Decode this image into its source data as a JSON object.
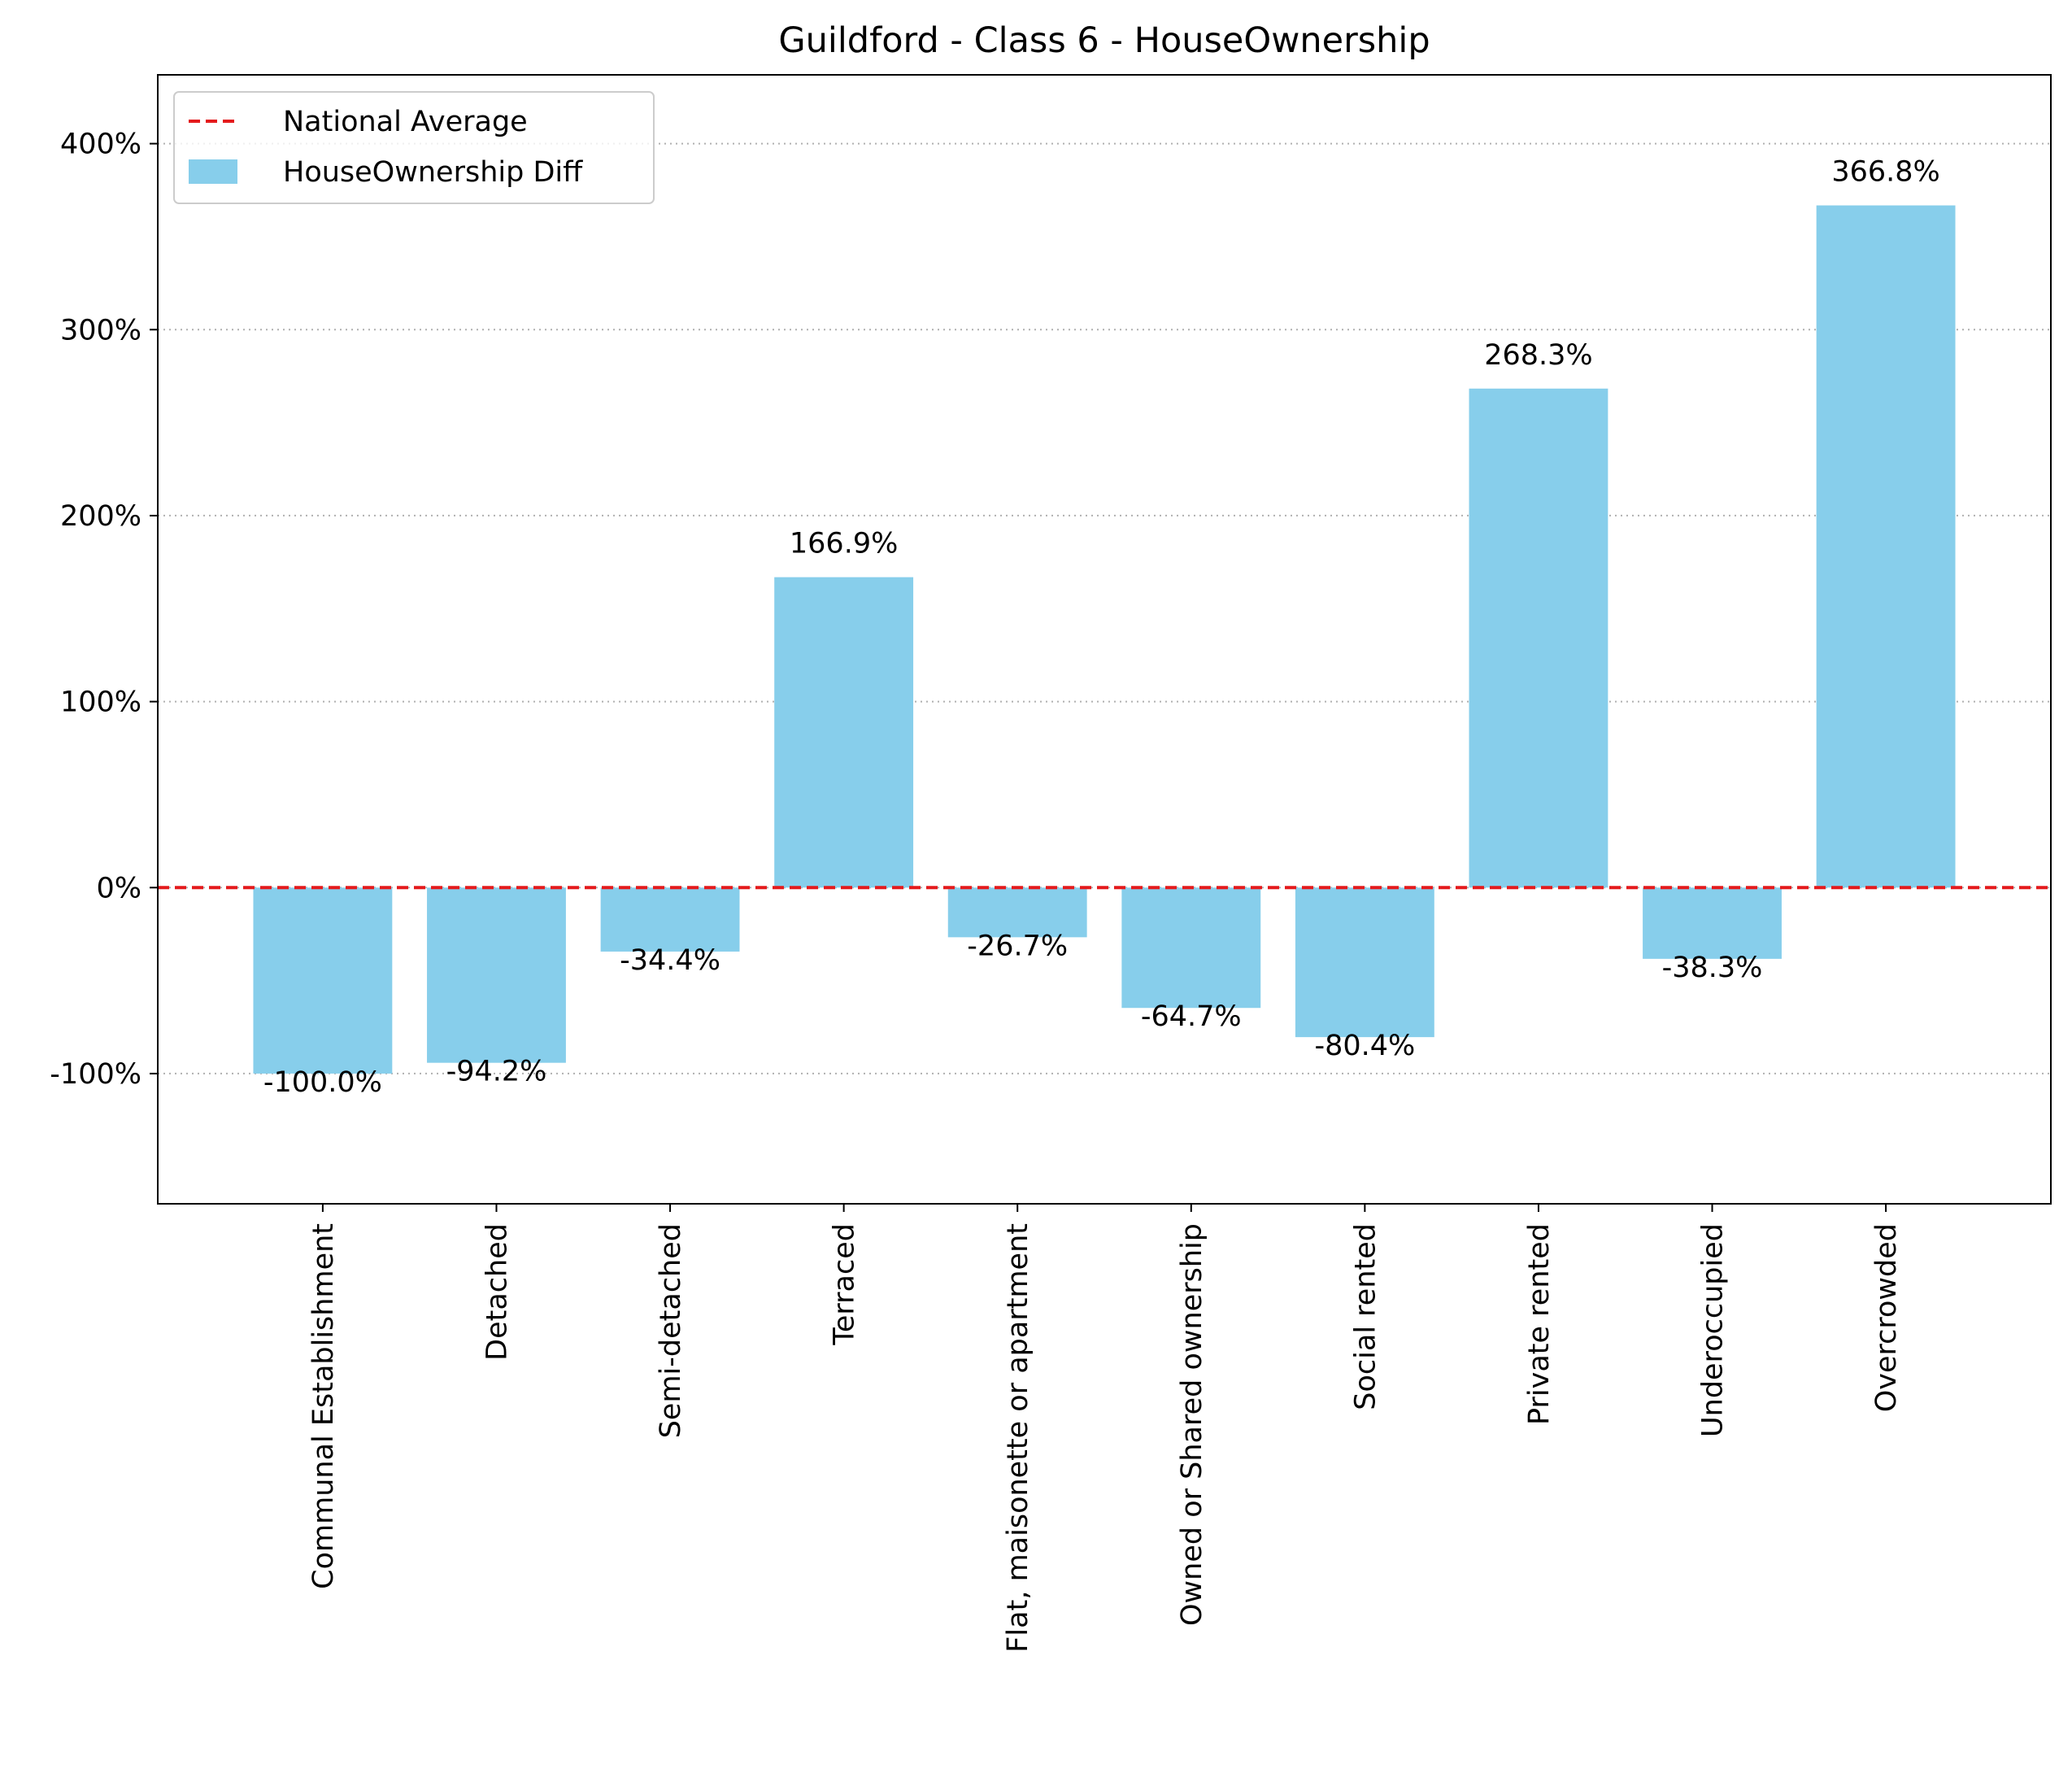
{
  "chart_data": {
    "type": "bar",
    "title": "Guildford - Class 6 - HouseOwnership",
    "xlabel": "",
    "ylabel": "",
    "categories": [
      "Communal Establishment",
      "Detached",
      "Semi-detached",
      "Terraced",
      "Flat, maisonette or apartment",
      "Owned or Shared ownership",
      "Social rented",
      "Private rented",
      "Underoccupied",
      "Overcrowded"
    ],
    "series": [
      {
        "name": "HouseOwnership Diff",
        "values": [
          -100.0,
          -94.2,
          -34.4,
          166.9,
          -26.7,
          -64.7,
          -80.4,
          268.3,
          -38.3,
          366.8
        ],
        "labels": [
          "-100.0%",
          "-94.2%",
          "-34.4%",
          "166.9%",
          "-26.7%",
          "-64.7%",
          "-80.4%",
          "268.3%",
          "-38.3%",
          "366.8%"
        ],
        "color": "#87CEEB"
      }
    ],
    "reference_line": {
      "name": "National Average",
      "value": 0,
      "color": "#e41a1c",
      "style": "dashed"
    },
    "ylim": [
      -170,
      437
    ],
    "yticks": [
      -100,
      0,
      100,
      200,
      300,
      400
    ],
    "ytick_labels": [
      "-100%",
      "0%",
      "100%",
      "200%",
      "300%",
      "400%"
    ],
    "grid": "y-dotted",
    "legend_placement": "top-left"
  }
}
